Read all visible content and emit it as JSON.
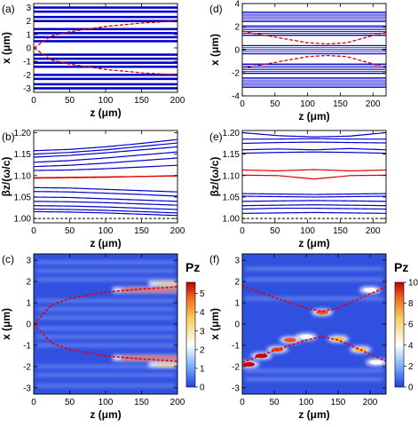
{
  "chart_data": [
    {
      "id": "a",
      "panel_label": "(a)",
      "type": "line",
      "xlabel": "z (μm)",
      "ylabel": "x (μm)",
      "xlim": [
        0,
        200
      ],
      "ylim": [
        -3.3,
        3.3
      ],
      "xticks": [
        0,
        50,
        100,
        150,
        200
      ],
      "yticks": [
        -3,
        -2,
        -1,
        0,
        1,
        2,
        3
      ],
      "blue_waveguide_centers": [
        -3.0,
        -2.7,
        -2.3,
        -2.0,
        -1.4,
        -1.1,
        -0.8,
        -0.5,
        0.5,
        0.8,
        1.1,
        1.4,
        2.0,
        2.3,
        2.7,
        3.0
      ],
      "blue_band_halfwidth": 0.085,
      "red_boundary": {
        "z": [
          0,
          25,
          50,
          100,
          150,
          200
        ],
        "x_abs": [
          0.0,
          0.9,
          1.2,
          1.6,
          1.85,
          2.0
        ]
      },
      "colors": {
        "guides": "#0000cc",
        "boundary": "#e00000"
      }
    },
    {
      "id": "b",
      "panel_label": "(b)",
      "type": "line",
      "xlabel": "z (μm)",
      "ylabel": "βz/(ω/c)",
      "xlim": [
        0,
        200
      ],
      "ylim": [
        0.99,
        1.205
      ],
      "xticks": [
        0,
        50,
        100,
        150,
        200
      ],
      "yticks": [
        1.0,
        1.05,
        1.1,
        1.15,
        1.2
      ],
      "ytick_labels": [
        "1.00",
        "1.05",
        "1.10",
        "1.15",
        "1.20"
      ],
      "x": [
        0,
        50,
        100,
        150,
        200
      ],
      "series": [
        {
          "color": "#0000cc",
          "values": [
            1.158,
            1.161,
            1.167,
            1.175,
            1.184
          ]
        },
        {
          "color": "#0000cc",
          "values": [
            1.15,
            1.154,
            1.16,
            1.168,
            1.176
          ]
        },
        {
          "color": "#0000cc",
          "values": [
            1.143,
            1.147,
            1.153,
            1.16,
            1.167
          ]
        },
        {
          "color": "#0000cc",
          "values": [
            1.131,
            1.135,
            1.141,
            1.148,
            1.155
          ]
        },
        {
          "color": "#0000cc",
          "values": [
            1.121,
            1.124,
            1.129,
            1.135,
            1.141
          ]
        },
        {
          "color": "#0000cc",
          "values": [
            1.112,
            1.113,
            1.116,
            1.12,
            1.124
          ]
        },
        {
          "color": "#e00000",
          "values": [
            1.095,
            1.096,
            1.097,
            1.098,
            1.1
          ]
        },
        {
          "color": "#e00000",
          "values": [
            1.094,
            1.095,
            1.096,
            1.098,
            1.099
          ]
        },
        {
          "color": "#0000cc",
          "values": [
            1.072,
            1.071,
            1.068,
            1.065,
            1.062
          ]
        },
        {
          "color": "#0000cc",
          "values": [
            1.063,
            1.062,
            1.059,
            1.056,
            1.052
          ]
        },
        {
          "color": "#0000cc",
          "values": [
            1.05,
            1.049,
            1.046,
            1.043,
            1.04
          ]
        },
        {
          "color": "#0000cc",
          "values": [
            1.04,
            1.039,
            1.037,
            1.034,
            1.031
          ]
        },
        {
          "color": "#0000cc",
          "values": [
            1.03,
            1.029,
            1.027,
            1.024,
            1.021
          ]
        },
        {
          "color": "#0000cc",
          "values": [
            1.022,
            1.021,
            1.019,
            1.016,
            1.013
          ]
        },
        {
          "color": "#0000cc",
          "values": [
            1.016,
            1.015,
            1.013,
            1.01,
            1.007
          ]
        }
      ],
      "reference_line": {
        "y": 1.0,
        "style": "dashed",
        "color": "#000000"
      }
    },
    {
      "id": "c",
      "panel_label": "(c)",
      "type": "heatmap",
      "xlabel": "z (μm)",
      "ylabel": "x (μm)",
      "xlim": [
        0,
        200
      ],
      "ylim": [
        -3.3,
        3.3
      ],
      "xticks": [
        0,
        50,
        100,
        150,
        200
      ],
      "yticks": [
        -3,
        -2,
        -1,
        0,
        1,
        2,
        3
      ],
      "colorbar_label": "Pz",
      "colorbar_ticks": [
        0,
        1,
        2,
        3,
        4,
        5
      ],
      "colorbar_range": [
        0,
        5.6
      ],
      "colors": {
        "low": "#2040e0",
        "mid": "#ffffff",
        "high": "#c00000"
      },
      "hot_bands": [
        {
          "x": 1.6,
          "z_start": 110,
          "z_end": 200,
          "level": 4.5
        },
        {
          "x": -1.6,
          "z_start": 110,
          "z_end": 200,
          "level": 4.5
        },
        {
          "x": 1.9,
          "z_start": 160,
          "z_end": 200,
          "level": 3.0
        },
        {
          "x": -1.9,
          "z_start": 160,
          "z_end": 200,
          "level": 3.0
        }
      ],
      "red_boundary": {
        "z": [
          0,
          25,
          50,
          100,
          150,
          200
        ],
        "x_abs": [
          0.0,
          0.9,
          1.2,
          1.5,
          1.65,
          1.75
        ]
      }
    },
    {
      "id": "d",
      "panel_label": "(d)",
      "type": "line",
      "xlabel": "z (μm)",
      "ylabel": "x (μm)",
      "xlim": [
        0,
        220
      ],
      "ylim": [
        -4,
        4
      ],
      "xticks": [
        0,
        50,
        100,
        150,
        200
      ],
      "yticks": [
        -4,
        -2,
        0,
        2,
        4
      ],
      "blue_band_sets": [
        [
          -3.3,
          -2.4
        ],
        [
          -2.1,
          -1.2
        ],
        [
          -0.4,
          0.4
        ],
        [
          1.2,
          2.1
        ],
        [
          2.4,
          3.3
        ]
      ],
      "red_boundary": {
        "z": [
          0,
          50,
          100,
          130,
          160,
          220
        ],
        "x_abs": [
          1.6,
          1.1,
          0.6,
          0.5,
          0.6,
          1.55
        ]
      },
      "colors": {
        "guides": "#0000cc",
        "boundary": "#e00000"
      }
    },
    {
      "id": "e",
      "panel_label": "(e)",
      "type": "line",
      "xlabel": "z (μm)",
      "ylabel": "βz/(ω/c)",
      "xlim": [
        0,
        220
      ],
      "ylim": [
        0.99,
        1.205
      ],
      "xticks": [
        0,
        50,
        100,
        150,
        200
      ],
      "yticks": [
        1.0,
        1.05,
        1.1,
        1.15,
        1.2
      ],
      "ytick_labels": [
        "1.00",
        "1.05",
        "1.10",
        "1.15",
        "1.20"
      ],
      "x": [
        0,
        55,
        110,
        165,
        220
      ],
      "series": [
        {
          "color": "#0000cc",
          "values": [
            1.2,
            1.193,
            1.19,
            1.192,
            1.2
          ]
        },
        {
          "color": "#0000cc",
          "values": [
            1.185,
            1.185,
            1.186,
            1.185,
            1.185
          ]
        },
        {
          "color": "#0000cc",
          "values": [
            1.175,
            1.177,
            1.178,
            1.177,
            1.176
          ]
        },
        {
          "color": "#0000cc",
          "values": [
            1.16,
            1.162,
            1.16,
            1.163,
            1.16
          ]
        },
        {
          "color": "#0000cc",
          "values": [
            1.152,
            1.154,
            1.155,
            1.154,
            1.152
          ]
        },
        {
          "color": "#e00000",
          "values": [
            1.113,
            1.111,
            1.114,
            1.111,
            1.113
          ]
        },
        {
          "color": "#e00000",
          "values": [
            1.101,
            1.1,
            1.092,
            1.1,
            1.101
          ]
        },
        {
          "color": "#0000cc",
          "values": [
            1.058,
            1.057,
            1.056,
            1.057,
            1.058
          ]
        },
        {
          "color": "#0000cc",
          "values": [
            1.052,
            1.051,
            1.05,
            1.051,
            1.052
          ]
        },
        {
          "color": "#0000cc",
          "values": [
            1.04,
            1.041,
            1.042,
            1.041,
            1.04
          ]
        },
        {
          "color": "#0000cc",
          "values": [
            1.03,
            1.031,
            1.032,
            1.031,
            1.03
          ]
        },
        {
          "color": "#0000cc",
          "values": [
            1.022,
            1.024,
            1.024,
            1.023,
            1.022
          ]
        },
        {
          "color": "#0000cc",
          "values": [
            1.012,
            1.013,
            1.014,
            1.013,
            1.012
          ]
        }
      ],
      "reference_line": {
        "y": 1.0,
        "style": "dashed",
        "color": "#000000"
      }
    },
    {
      "id": "f",
      "panel_label": "(f)",
      "type": "heatmap",
      "xlabel": "z (μm)",
      "ylabel": "x (μm)",
      "xlim": [
        0,
        225
      ],
      "ylim": [
        -3.3,
        3.3
      ],
      "xticks": [
        0,
        50,
        100,
        150,
        200
      ],
      "yticks": [
        -3,
        -2,
        -1,
        0,
        1,
        2,
        3
      ],
      "colorbar_label": "Pz",
      "colorbar_ticks": [
        0,
        2,
        4,
        6,
        8,
        10
      ],
      "colorbar_range": [
        0,
        10
      ],
      "colors": {
        "low": "#2040e0",
        "mid": "#ffffff",
        "high": "#c00000"
      },
      "hot_spots": [
        {
          "z": 10,
          "x": -1.9,
          "level": 10
        },
        {
          "z": 30,
          "x": -1.5,
          "level": 9
        },
        {
          "z": 55,
          "x": -1.2,
          "level": 7
        },
        {
          "z": 75,
          "x": -0.75,
          "level": 8
        },
        {
          "z": 100,
          "x": -0.6,
          "level": 4
        },
        {
          "z": 125,
          "x": 0.55,
          "level": 8
        },
        {
          "z": 150,
          "x": -0.7,
          "level": 6
        },
        {
          "z": 185,
          "x": -1.2,
          "level": 5
        },
        {
          "z": 200,
          "x": 1.6,
          "level": 3
        },
        {
          "z": 210,
          "x": -1.8,
          "level": 4
        }
      ],
      "red_boundary": {
        "z": [
          0,
          50,
          100,
          125,
          150,
          225
        ],
        "x_abs": [
          1.8,
          1.25,
          0.75,
          0.6,
          0.75,
          1.75
        ]
      }
    }
  ]
}
